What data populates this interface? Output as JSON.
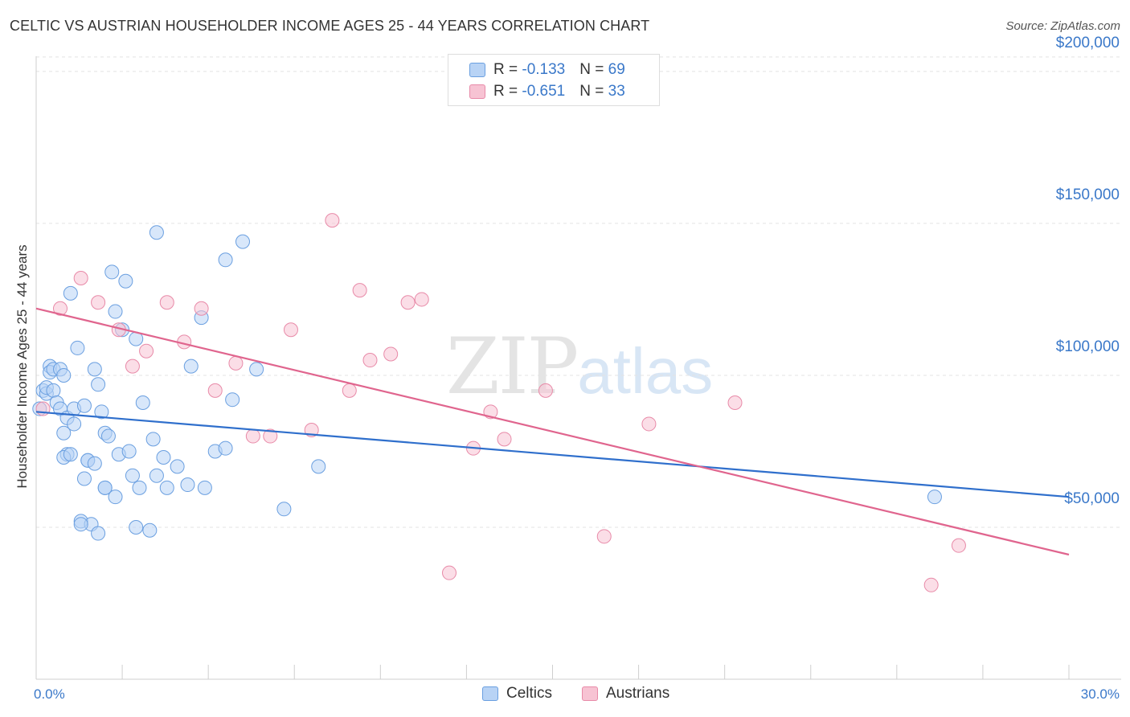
{
  "header": {
    "title": "CELTIC VS AUSTRIAN HOUSEHOLDER INCOME AGES 25 - 44 YEARS CORRELATION CHART",
    "source": "Source: ZipAtlas.com"
  },
  "watermark": {
    "zip": "ZIP",
    "atlas": "atlas"
  },
  "legend": {
    "rows": [
      {
        "r_label": "R = ",
        "r_value": "-0.133",
        "n_label": "N = ",
        "n_value": "69"
      },
      {
        "r_label": "R = ",
        "r_value": "-0.651",
        "n_label": "N = ",
        "n_value": "33"
      }
    ]
  },
  "bottom_legend": {
    "celtics": "Celtics",
    "austrians": "Austrians"
  },
  "colors": {
    "celtics_fill": "#b8d3f5",
    "celtics_stroke": "#6a9fe0",
    "celtics_line": "#2f6fcc",
    "austrians_fill": "#f7c3d3",
    "austrians_stroke": "#e88aa8",
    "austrians_line": "#e0658e",
    "tick_text": "#3a78c9"
  },
  "chart_data": {
    "type": "scatter",
    "title": "CELTIC VS AUSTRIAN HOUSEHOLDER INCOME AGES 25 - 44 YEARS CORRELATION CHART",
    "xlabel": "",
    "ylabel": "Householder Income Ages 25 - 44 years",
    "xlim": [
      0,
      30
    ],
    "ylim": [
      0,
      205000
    ],
    "x_tick_labels": [
      "0.0%",
      "30.0%"
    ],
    "y_ticks": [
      {
        "value": 50000,
        "label": "$50,000"
      },
      {
        "value": 100000,
        "label": "$100,000"
      },
      {
        "value": 150000,
        "label": "$150,000"
      },
      {
        "value": 200000,
        "label": "$200,000"
      }
    ],
    "grid": true,
    "legend_position": "top-center",
    "series": [
      {
        "name": "Celtics",
        "trend": {
          "x": [
            0,
            30
          ],
          "y": [
            88000,
            60000
          ]
        },
        "points": [
          [
            0.1,
            89000
          ],
          [
            0.2,
            95000
          ],
          [
            0.3,
            94000
          ],
          [
            0.3,
            96000
          ],
          [
            0.4,
            103000
          ],
          [
            0.4,
            101000
          ],
          [
            0.5,
            102000
          ],
          [
            0.5,
            95000
          ],
          [
            0.6,
            91000
          ],
          [
            0.7,
            89000
          ],
          [
            0.7,
            102000
          ],
          [
            0.8,
            100000
          ],
          [
            0.8,
            81000
          ],
          [
            0.9,
            86000
          ],
          [
            0.9,
            74000
          ],
          [
            1.0,
            127000
          ],
          [
            1.1,
            84000
          ],
          [
            1.1,
            89000
          ],
          [
            1.2,
            109000
          ],
          [
            1.3,
            52000
          ],
          [
            1.4,
            90000
          ],
          [
            1.5,
            72000
          ],
          [
            1.6,
            51000
          ],
          [
            1.7,
            102000
          ],
          [
            1.8,
            97000
          ],
          [
            1.9,
            88000
          ],
          [
            2.0,
            81000
          ],
          [
            2.0,
            63000
          ],
          [
            2.1,
            80000
          ],
          [
            2.2,
            134000
          ],
          [
            2.3,
            121000
          ],
          [
            2.4,
            74000
          ],
          [
            2.5,
            115000
          ],
          [
            2.6,
            131000
          ],
          [
            2.7,
            75000
          ],
          [
            2.8,
            67000
          ],
          [
            2.9,
            112000
          ],
          [
            2.9,
            50000
          ],
          [
            3.0,
            63000
          ],
          [
            3.1,
            91000
          ],
          [
            3.3,
            49000
          ],
          [
            3.4,
            79000
          ],
          [
            3.5,
            67000
          ],
          [
            3.5,
            147000
          ],
          [
            3.7,
            73000
          ],
          [
            3.8,
            63000
          ],
          [
            4.1,
            70000
          ],
          [
            4.4,
            64000
          ],
          [
            4.5,
            103000
          ],
          [
            4.8,
            119000
          ],
          [
            4.9,
            63000
          ],
          [
            5.2,
            75000
          ],
          [
            5.5,
            76000
          ],
          [
            5.5,
            138000
          ],
          [
            5.7,
            92000
          ],
          [
            6.0,
            144000
          ],
          [
            6.4,
            102000
          ],
          [
            7.2,
            56000
          ],
          [
            8.2,
            70000
          ],
          [
            0.8,
            73000
          ],
          [
            1.3,
            51000
          ],
          [
            1.5,
            72000
          ],
          [
            1.4,
            66000
          ],
          [
            1.8,
            48000
          ],
          [
            2.0,
            63000
          ],
          [
            2.3,
            60000
          ],
          [
            1.0,
            74000
          ],
          [
            1.7,
            71000
          ],
          [
            26.1,
            60000
          ]
        ]
      },
      {
        "name": "Austrians",
        "trend": {
          "x": [
            0,
            30
          ],
          "y": [
            122000,
            41000
          ]
        },
        "points": [
          [
            0.2,
            89000
          ],
          [
            0.7,
            122000
          ],
          [
            1.3,
            132000
          ],
          [
            1.8,
            124000
          ],
          [
            2.4,
            115000
          ],
          [
            2.8,
            103000
          ],
          [
            3.2,
            108000
          ],
          [
            3.8,
            124000
          ],
          [
            4.3,
            111000
          ],
          [
            4.8,
            122000
          ],
          [
            5.2,
            95000
          ],
          [
            5.8,
            104000
          ],
          [
            6.3,
            80000
          ],
          [
            6.8,
            80000
          ],
          [
            7.4,
            115000
          ],
          [
            8.0,
            82000
          ],
          [
            8.6,
            151000
          ],
          [
            9.1,
            95000
          ],
          [
            9.4,
            128000
          ],
          [
            9.7,
            105000
          ],
          [
            10.3,
            107000
          ],
          [
            10.8,
            124000
          ],
          [
            11.2,
            125000
          ],
          [
            12.0,
            35000
          ],
          [
            12.7,
            76000
          ],
          [
            13.2,
            88000
          ],
          [
            13.6,
            79000
          ],
          [
            14.8,
            95000
          ],
          [
            16.5,
            47000
          ],
          [
            17.8,
            84000
          ],
          [
            20.3,
            91000
          ],
          [
            26.0,
            31000
          ],
          [
            26.8,
            44000
          ]
        ]
      }
    ]
  }
}
